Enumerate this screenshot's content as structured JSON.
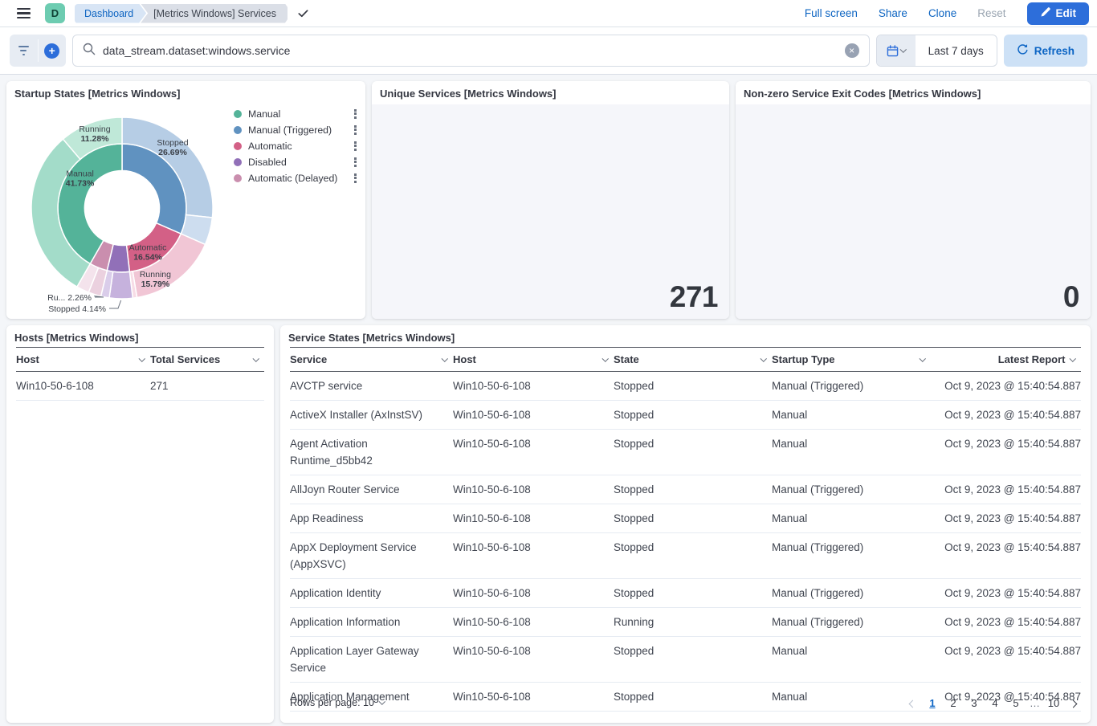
{
  "header": {
    "space_initial": "D",
    "breadcrumbs": [
      "Dashboard",
      "[Metrics Windows] Services"
    ],
    "actions": {
      "full_screen": "Full screen",
      "share": "Share",
      "clone": "Clone",
      "reset": "Reset",
      "edit": "Edit"
    }
  },
  "query_bar": {
    "query": "data_stream.dataset:windows.service",
    "time_range": "Last 7 days",
    "refresh_label": "Refresh"
  },
  "panels": {
    "startup_states": {
      "title": "Startup States [Metrics Windows]"
    },
    "unique_services": {
      "title": "Unique Services [Metrics Windows]",
      "value": "271"
    },
    "exit_codes": {
      "title": "Non-zero Service Exit Codes [Metrics Windows]",
      "value": "0"
    },
    "hosts": {
      "title": "Hosts [Metrics Windows]",
      "columns": [
        "Host",
        "Total Services"
      ],
      "rows": [
        [
          "Win10-50-6-108",
          "271"
        ]
      ]
    },
    "service_states": {
      "title": "Service States [Metrics Windows]",
      "columns": [
        "Service",
        "Host",
        "State",
        "Startup Type",
        "Latest Report"
      ],
      "rows": [
        [
          "AVCTP service",
          "Win10-50-6-108",
          "Stopped",
          "Manual (Triggered)",
          "Oct 9, 2023 @ 15:40:54.887"
        ],
        [
          "ActiveX Installer (AxInstSV)",
          "Win10-50-6-108",
          "Stopped",
          "Manual",
          "Oct 9, 2023 @ 15:40:54.887"
        ],
        [
          "Agent Activation Runtime_d5bb42",
          "Win10-50-6-108",
          "Stopped",
          "Manual",
          "Oct 9, 2023 @ 15:40:54.887"
        ],
        [
          "AllJoyn Router Service",
          "Win10-50-6-108",
          "Stopped",
          "Manual (Triggered)",
          "Oct 9, 2023 @ 15:40:54.887"
        ],
        [
          "App Readiness",
          "Win10-50-6-108",
          "Stopped",
          "Manual",
          "Oct 9, 2023 @ 15:40:54.887"
        ],
        [
          "AppX Deployment Service (AppXSVC)",
          "Win10-50-6-108",
          "Stopped",
          "Manual (Triggered)",
          "Oct 9, 2023 @ 15:40:54.887"
        ],
        [
          "Application Identity",
          "Win10-50-6-108",
          "Stopped",
          "Manual (Triggered)",
          "Oct 9, 2023 @ 15:40:54.887"
        ],
        [
          "Application Information",
          "Win10-50-6-108",
          "Running",
          "Manual (Triggered)",
          "Oct 9, 2023 @ 15:40:54.887"
        ],
        [
          "Application Layer Gateway Service",
          "Win10-50-6-108",
          "Stopped",
          "Manual",
          "Oct 9, 2023 @ 15:40:54.887"
        ],
        [
          "Application Management",
          "Win10-50-6-108",
          "Stopped",
          "Manual",
          "Oct 9, 2023 @ 15:40:54.887"
        ]
      ],
      "footer": {
        "rows_per_page": "Rows per page: 10",
        "pages": [
          "1",
          "2",
          "3",
          "4",
          "5",
          "…",
          "10"
        ],
        "active_page": "1"
      }
    }
  },
  "chart_data": {
    "type": "pie",
    "subtype": "sunburst-donut",
    "title": "Startup States [Metrics Windows]",
    "rings": [
      "startup_type",
      "state"
    ],
    "legend_position": "right",
    "series": [
      {
        "name": "Manual (Triggered)",
        "value": 31.58,
        "color": "#6092C0",
        "children": [
          {
            "name": "Stopped",
            "value": 26.69,
            "color": "#B6CDE5",
            "label_visible": true
          },
          {
            "name": "Running",
            "value": 4.89,
            "color": "#CDDDEF"
          }
        ]
      },
      {
        "name": "Automatic",
        "value": 16.54,
        "color": "#D36086",
        "label_visible": true,
        "children": [
          {
            "name": "Running",
            "value": 15.79,
            "color": "#F1C6D5",
            "label_visible": true
          },
          {
            "name": "Stopped",
            "value": 0.75,
            "color": "#F7DCE6"
          }
        ]
      },
      {
        "name": "Disabled",
        "value": 5.64,
        "color": "#9170B8",
        "children": [
          {
            "name": "Stopped",
            "value": 4.14,
            "color": "#C6B2DD",
            "callout_label": "Stopped 4.14%"
          },
          {
            "name": "Running",
            "value": 1.5,
            "color": "#DACDEA"
          }
        ]
      },
      {
        "name": "Automatic (Delayed)",
        "value": 4.51,
        "color": "#CA8EAE",
        "children": [
          {
            "name": "Running",
            "value": 2.26,
            "color": "#EBD1DF",
            "callout_label": "Ru... 2.26%"
          },
          {
            "name": "Stopped",
            "value": 2.25,
            "color": "#F4E3EC"
          }
        ]
      },
      {
        "name": "Manual",
        "value": 41.73,
        "color": "#54B399",
        "label_visible": true,
        "children": [
          {
            "name": "Stopped",
            "value": 30.45,
            "color": "#A3DCC9"
          },
          {
            "name": "Running",
            "value": 11.28,
            "color": "#BFE8D8",
            "label_visible": true
          }
        ]
      }
    ]
  }
}
